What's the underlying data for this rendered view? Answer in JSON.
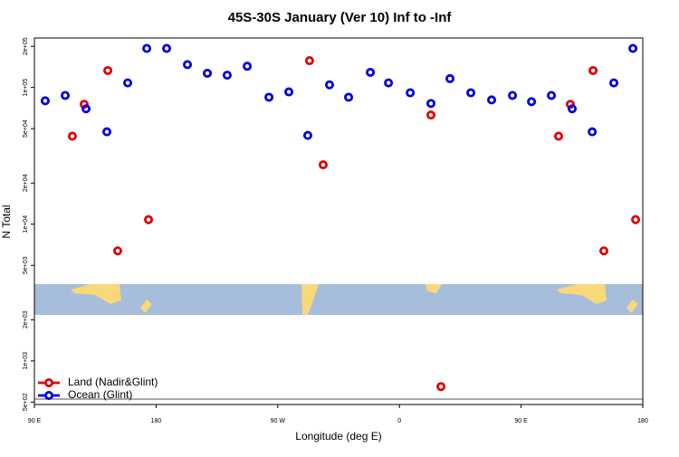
{
  "chart_data": {
    "type": "scatter",
    "title": "45S-30S January (Ver 10)   Inf to -Inf",
    "x_label": "Longitude (deg E)",
    "y_label": "N Total",
    "log_y": true,
    "xlim": [
      90,
      540
    ],
    "xticks": [
      {
        "value": 90,
        "label": "90 E"
      },
      {
        "value": 180,
        "label": "180"
      },
      {
        "value": 270,
        "label": "90 W"
      },
      {
        "value": 360,
        "label": "0"
      },
      {
        "value": 450,
        "label": "90 E"
      },
      {
        "value": 540,
        "label": "180"
      }
    ],
    "ylim": [
      480,
      230000
    ],
    "yticks": [
      {
        "value": 500,
        "label": "5e+02"
      },
      {
        "value": 1000,
        "label": "1e+03"
      },
      {
        "value": 2000,
        "label": "2e+03"
      },
      {
        "value": 5000,
        "label": "5e+03"
      },
      {
        "value": 10000,
        "label": "1e+04"
      },
      {
        "value": 20000,
        "label": "2e+04"
      },
      {
        "value": 50000,
        "label": "5e+04"
      },
      {
        "value": 100000,
        "label": "1e+05"
      },
      {
        "value": 200000,
        "label": "2e+05"
      }
    ],
    "legend_position": "lower left",
    "series": [
      {
        "name": "Land (Nadir&Glint)",
        "color": "#e00000",
        "x": [
          118.1,
          126.8,
          144.3,
          151.6,
          174.4,
          293.5,
          303.6,
          383.3,
          390.7,
          477.7,
          486.4,
          503.2,
          511.2,
          534.7
        ],
        "values": [
          44000,
          75300,
          133000,
          6380,
          10800,
          157000,
          27200,
          62900,
          649,
          44000,
          75300,
          133000,
          6380,
          10800
        ]
      },
      {
        "name": "Ocean (Glint)",
        "color": "#0000e0",
        "x": [
          98.0,
          112.8,
          128.2,
          143.6,
          159.0,
          173.1,
          187.8,
          203.2,
          217.9,
          232.6,
          247.4,
          263.5,
          278.2,
          292.2,
          308.3,
          322.4,
          338.5,
          351.9,
          368.0,
          383.3,
          397.4,
          412.8,
          428.2,
          443.6,
          457.7,
          472.4,
          487.8,
          502.6,
          518.6,
          532.7
        ],
        "values": [
          79900,
          87400,
          69800,
          47400,
          108000,
          193000,
          193000,
          147000,
          127000,
          123000,
          143000,
          84800,
          92800,
          44600,
          104600,
          84800,
          129000,
          108000,
          91400,
          76400,
          116000,
          91400,
          81100,
          87400,
          78700,
          87400,
          69800,
          47400,
          108000,
          193000
        ]
      }
    ]
  }
}
